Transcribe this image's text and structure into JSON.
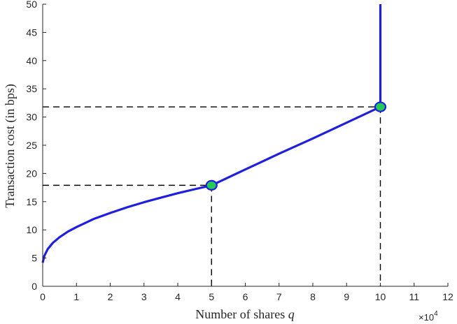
{
  "chart_data": {
    "type": "line",
    "xlabel": "Number of shares",
    "xlabel_var": "q",
    "ylabel": "Transaction cost (in bps)",
    "x_multiplier_label": "×10",
    "x_multiplier_exp": "4",
    "xlim": [
      0,
      12
    ],
    "ylim": [
      0,
      50
    ],
    "xticks": [
      0,
      1,
      2,
      3,
      4,
      5,
      6,
      7,
      8,
      9,
      10,
      11,
      12
    ],
    "yticks": [
      0,
      5,
      10,
      15,
      20,
      25,
      30,
      35,
      40,
      45,
      50
    ],
    "grid": false,
    "colors": {
      "line": "#1f1fe0",
      "marker_fill": "#22cc55",
      "marker_edge": "#1f1fe0",
      "guide": "#000000",
      "axis": "#262626"
    },
    "series": [
      {
        "x": [
          0,
          0.05,
          0.15,
          0.3,
          0.5,
          0.75,
          1.0,
          1.5,
          2.0,
          2.5,
          3.0,
          3.5,
          4.0,
          4.5,
          5.0,
          6.0,
          7.0,
          8.0,
          9.0,
          10.0,
          10.0
        ],
        "y": [
          4.2,
          5.4,
          6.6,
          7.7,
          8.7,
          9.7,
          10.5,
          11.9,
          13.0,
          14.0,
          14.9,
          15.7,
          16.5,
          17.2,
          17.9,
          20.7,
          23.5,
          26.2,
          29.0,
          31.8,
          50
        ]
      }
    ],
    "markers": [
      {
        "x": 5,
        "y": 17.9
      },
      {
        "x": 10,
        "y": 31.8
      }
    ],
    "guides": [
      {
        "x": 5,
        "y": 17.9
      },
      {
        "x": 10,
        "y": 31.8
      }
    ]
  }
}
